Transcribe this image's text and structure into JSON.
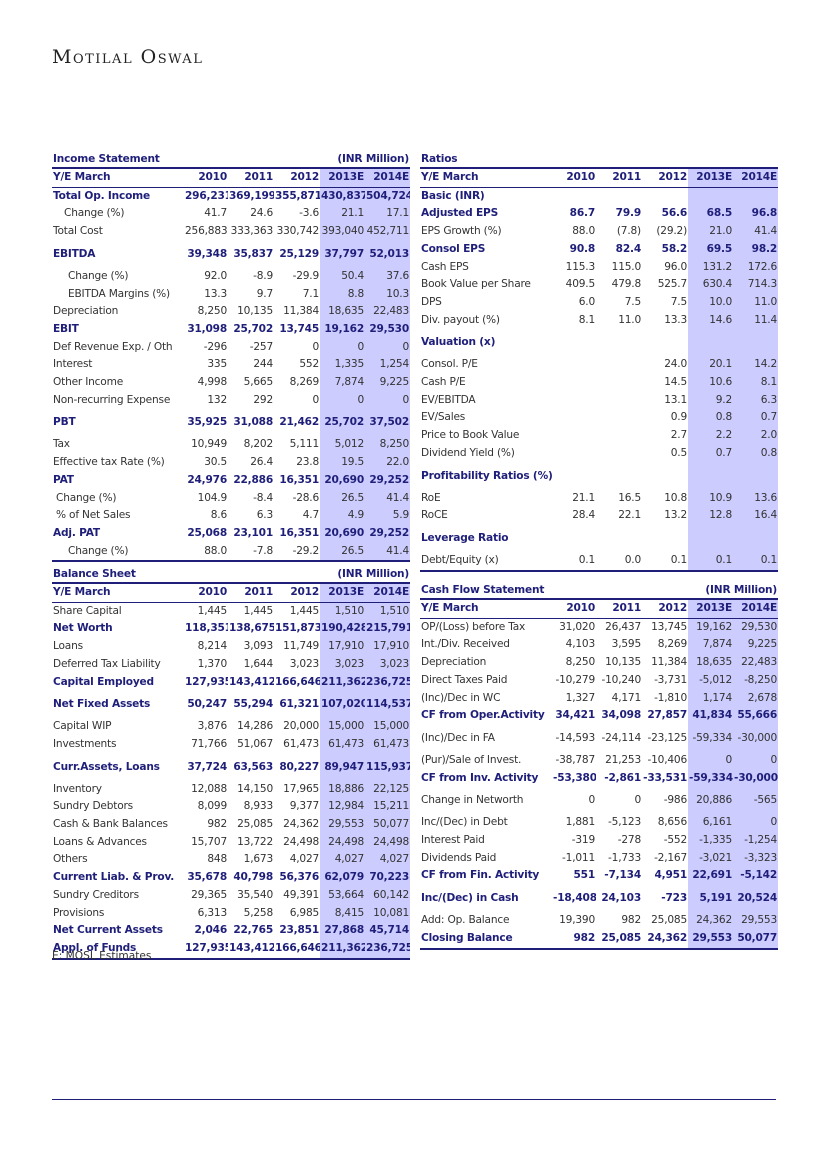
{
  "brand": "Motilal Oswal",
  "note": "E: MOSL Estimates",
  "tables": {
    "income": {
      "title": "Income Statement",
      "unit": "(INR Million)",
      "header": [
        "Y/E March",
        "2010",
        "2011",
        "2012",
        "2013E",
        "2014E"
      ],
      "rows": [
        {
          "label": "Total Op. Income",
          "values": [
            "296,231",
            "369,199",
            "355,871",
            "430,837",
            "504,724"
          ],
          "style": "b"
        },
        {
          "label": "Change (%)",
          "values": [
            "41.7",
            "24.6",
            "-3.6",
            "21.1",
            "17.1"
          ],
          "indent": 1
        },
        {
          "label": "Total Cost",
          "values": [
            "256,883",
            "333,363",
            "330,742",
            "393,040",
            "452,711"
          ]
        },
        {
          "label": "EBITDA",
          "values": [
            "39,348",
            "35,837",
            "25,129",
            "37,797",
            "52,013"
          ],
          "style": "b",
          "gap": true
        },
        {
          "label": "Change (%)",
          "values": [
            "92.0",
            "-8.9",
            "-29.9",
            "50.4",
            "37.6"
          ],
          "indent": 2
        },
        {
          "label": "EBITDA Margins (%)",
          "values": [
            "13.3",
            "9.7",
            "7.1",
            "8.8",
            "10.3"
          ],
          "indent": 2
        },
        {
          "label": "Depreciation",
          "values": [
            "8,250",
            "10,135",
            "11,384",
            "18,635",
            "22,483"
          ]
        },
        {
          "label": "EBIT",
          "values": [
            "31,098",
            "25,702",
            "13,745",
            "19,162",
            "29,530"
          ],
          "style": "b"
        },
        {
          "label": "Def Revenue Exp. / Oth",
          "values": [
            "-296",
            "-257",
            "0",
            "0",
            "0"
          ]
        },
        {
          "label": "Interest",
          "values": [
            "335",
            "244",
            "552",
            "1,335",
            "1,254"
          ]
        },
        {
          "label": "Other Income",
          "values": [
            "4,998",
            "5,665",
            "8,269",
            "7,874",
            "9,225"
          ]
        },
        {
          "label": "Non-recurring Expense",
          "values": [
            "132",
            "292",
            "0",
            "0",
            "0"
          ]
        },
        {
          "label": "PBT",
          "values": [
            "35,925",
            "31,088",
            "21,462",
            "25,702",
            "37,502"
          ],
          "style": "b",
          "gap": true
        },
        {
          "label": "Tax",
          "values": [
            "10,949",
            "8,202",
            "5,111",
            "5,012",
            "8,250"
          ]
        },
        {
          "label": "Effective tax Rate (%)",
          "values": [
            "30.5",
            "26.4",
            "23.8",
            "19.5",
            "22.0"
          ]
        },
        {
          "label": "PAT",
          "values": [
            "24,976",
            "22,886",
            "16,351",
            "20,690",
            "29,252"
          ],
          "style": "b"
        },
        {
          "label": "Change (%)",
          "values": [
            "104.9",
            "-8.4",
            "-28.6",
            "26.5",
            "41.4"
          ],
          "indent": 3
        },
        {
          "label": "% of Net Sales",
          "values": [
            "8.6",
            "6.3",
            "4.7",
            "4.9",
            "5.9"
          ],
          "indent": 3
        },
        {
          "label": "Adj. PAT",
          "values": [
            "25,068",
            "23,101",
            "16,351",
            "20,690",
            "29,252"
          ],
          "style": "b"
        },
        {
          "label": "Change (%)",
          "values": [
            "88.0",
            "-7.8",
            "-29.2",
            "26.5",
            "41.4"
          ],
          "indent": 2
        }
      ]
    },
    "ratios": {
      "title": "Ratios",
      "unit": "",
      "header": [
        "Y/E March",
        "2010",
        "2011",
        "2012",
        "2013E",
        "2014E"
      ],
      "rows": [
        {
          "label": "Basic (INR)",
          "values": [
            "",
            "",
            "",
            "",
            ""
          ],
          "style": "sec"
        },
        {
          "label": "Adjusted EPS",
          "values": [
            "86.7",
            "79.9",
            "56.6",
            "68.5",
            "96.8"
          ],
          "style": "b"
        },
        {
          "label": "EPS Growth (%)",
          "values": [
            "88.0",
            "(7.8)",
            "(29.2)",
            "21.0",
            "41.4"
          ]
        },
        {
          "label": "Consol EPS",
          "values": [
            "90.8",
            "82.4",
            "58.2",
            "69.5",
            "98.2"
          ],
          "style": "b"
        },
        {
          "label": "Cash EPS",
          "values": [
            "115.3",
            "115.0",
            "96.0",
            "131.2",
            "172.6"
          ]
        },
        {
          "label": "Book Value per Share",
          "values": [
            "409.5",
            "479.8",
            "525.7",
            "630.4",
            "714.3"
          ]
        },
        {
          "label": "DPS",
          "values": [
            "6.0",
            "7.5",
            "7.5",
            "10.0",
            "11.0"
          ]
        },
        {
          "label": "Div. payout (%)",
          "values": [
            "8.1",
            "11.0",
            "13.3",
            "14.6",
            "11.4"
          ]
        },
        {
          "label": "Valuation (x)",
          "values": [
            "",
            "",
            "",
            "",
            ""
          ],
          "style": "sec",
          "gap": true
        },
        {
          "label": "Consol. P/E",
          "values": [
            "",
            "",
            "24.0",
            "20.1",
            "14.2"
          ]
        },
        {
          "label": "Cash P/E",
          "values": [
            "",
            "",
            "14.5",
            "10.6",
            "8.1"
          ]
        },
        {
          "label": "EV/EBITDA",
          "values": [
            "",
            "",
            "13.1",
            "9.2",
            "6.3"
          ]
        },
        {
          "label": "EV/Sales",
          "values": [
            "",
            "",
            "0.9",
            "0.8",
            "0.7"
          ]
        },
        {
          "label": "Price to Book Value",
          "values": [
            "",
            "",
            "2.7",
            "2.2",
            "2.0"
          ]
        },
        {
          "label": "Dividend Yield (%)",
          "values": [
            "",
            "",
            "0.5",
            "0.7",
            "0.8"
          ]
        },
        {
          "label": "Profitability Ratios (%)",
          "values": [
            "",
            "",
            "",
            "",
            ""
          ],
          "style": "sec",
          "gap": true
        },
        {
          "label": "RoE",
          "values": [
            "21.1",
            "16.5",
            "10.8",
            "10.9",
            "13.6"
          ]
        },
        {
          "label": "RoCE",
          "values": [
            "28.4",
            "22.1",
            "13.2",
            "12.8",
            "16.4"
          ]
        },
        {
          "label": "Leverage Ratio",
          "values": [
            "",
            "",
            "",
            "",
            ""
          ],
          "style": "sec",
          "gap": true
        },
        {
          "label": "Debt/Equity (x)",
          "values": [
            "0.1",
            "0.0",
            "0.1",
            "0.1",
            "0.1"
          ]
        }
      ]
    },
    "balance": {
      "title": "Balance Sheet",
      "unit": "(INR Million)",
      "header": [
        "Y/E March",
        "2010",
        "2011",
        "2012",
        "2013E",
        "2014E"
      ],
      "rows": [
        {
          "label": "Share Capital",
          "values": [
            "1,445",
            "1,445",
            "1,445",
            "1,510",
            "1,510"
          ]
        },
        {
          "label": "Net Worth",
          "values": [
            "118,351",
            "138,675",
            "151,873",
            "190,428",
            "215,791"
          ],
          "style": "b"
        },
        {
          "label": "Loans",
          "values": [
            "8,214",
            "3,093",
            "11,749",
            "17,910",
            "17,910"
          ]
        },
        {
          "label": "Deferred Tax Liability",
          "values": [
            "1,370",
            "1,644",
            "3,023",
            "3,023",
            "3,023"
          ]
        },
        {
          "label": "Capital Employed",
          "values": [
            "127,935",
            "143,412",
            "166,646",
            "211,362",
            "236,725"
          ],
          "style": "b"
        },
        {
          "label": "Net Fixed Assets",
          "values": [
            "50,247",
            "55,294",
            "61,321",
            "107,020",
            "114,537"
          ],
          "style": "b",
          "gap": true
        },
        {
          "label": "Capital WIP",
          "values": [
            "3,876",
            "14,286",
            "20,000",
            "15,000",
            "15,000"
          ]
        },
        {
          "label": "Investments",
          "values": [
            "71,766",
            "51,067",
            "61,473",
            "61,473",
            "61,473"
          ]
        },
        {
          "label": "Curr.Assets, Loans",
          "values": [
            "37,724",
            "63,563",
            "80,227",
            "89,947",
            "115,937"
          ],
          "style": "b",
          "gap": true
        },
        {
          "label": "Inventory",
          "values": [
            "12,088",
            "14,150",
            "17,965",
            "18,886",
            "22,125"
          ]
        },
        {
          "label": "Sundry Debtors",
          "values": [
            "8,099",
            "8,933",
            "9,377",
            "12,984",
            "15,211"
          ]
        },
        {
          "label": "Cash & Bank Balances",
          "values": [
            "982",
            "25,085",
            "24,362",
            "29,553",
            "50,077"
          ]
        },
        {
          "label": "Loans & Advances",
          "values": [
            "15,707",
            "13,722",
            "24,498",
            "24,498",
            "24,498"
          ]
        },
        {
          "label": "Others",
          "values": [
            "848",
            "1,673",
            "4,027",
            "4,027",
            "4,027"
          ]
        },
        {
          "label": "Current Liab. & Prov.",
          "values": [
            "35,678",
            "40,798",
            "56,376",
            "62,079",
            "70,223"
          ],
          "style": "b"
        },
        {
          "label": "Sundry Creditors",
          "values": [
            "29,365",
            "35,540",
            "49,391",
            "53,664",
            "60,142"
          ]
        },
        {
          "label": "Provisions",
          "values": [
            "6,313",
            "5,258",
            "6,985",
            "8,415",
            "10,081"
          ]
        },
        {
          "label": "Net Current Assets",
          "values": [
            "2,046",
            "22,765",
            "23,851",
            "27,868",
            "45,714"
          ],
          "style": "b"
        },
        {
          "label": "Appl. of Funds",
          "values": [
            "127,935",
            "143,412",
            "166,646",
            "211,362",
            "236,725"
          ],
          "style": "b"
        }
      ]
    },
    "cashflow": {
      "title": "Cash Flow Statement",
      "unit": "(INR Million)",
      "header": [
        "Y/E March",
        "2010",
        "2011",
        "2012",
        "2013E",
        "2014E"
      ],
      "rows": [
        {
          "label": "OP/(Loss) before Tax",
          "values": [
            "31,020",
            "26,437",
            "13,745",
            "19,162",
            "29,530"
          ]
        },
        {
          "label": "Int./Div. Received",
          "values": [
            "4,103",
            "3,595",
            "8,269",
            "7,874",
            "9,225"
          ]
        },
        {
          "label": "Depreciation",
          "values": [
            "8,250",
            "10,135",
            "11,384",
            "18,635",
            "22,483"
          ]
        },
        {
          "label": "Direct Taxes Paid",
          "values": [
            "-10,279",
            "-10,240",
            "-3,731",
            "-5,012",
            "-8,250"
          ]
        },
        {
          "label": "(Inc)/Dec in WC",
          "values": [
            "1,327",
            "4,171",
            "-1,810",
            "1,174",
            "2,678"
          ]
        },
        {
          "label": "CF from Oper.Activity",
          "values": [
            "34,421",
            "34,098",
            "27,857",
            "41,834",
            "55,666"
          ],
          "style": "b"
        },
        {
          "label": "(Inc)/Dec in FA",
          "values": [
            "-14,593",
            "-24,114",
            "-23,125",
            "-59,334",
            "-30,000"
          ],
          "gap": true
        },
        {
          "label": "(Pur)/Sale of Invest.",
          "values": [
            "-38,787",
            "21,253",
            "-10,406",
            "0",
            "0"
          ]
        },
        {
          "label": "CF from Inv. Activity",
          "values": [
            "-53,380",
            "-2,861",
            "-33,531",
            "-59,334",
            "-30,000"
          ],
          "style": "b"
        },
        {
          "label": "Change in Networth",
          "values": [
            "0",
            "0",
            "-986",
            "20,886",
            "-565"
          ],
          "gap": true
        },
        {
          "label": "Inc/(Dec) in Debt",
          "values": [
            "1,881",
            "-5,123",
            "8,656",
            "6,161",
            "0"
          ]
        },
        {
          "label": "Interest Paid",
          "values": [
            "-319",
            "-278",
            "-552",
            "-1,335",
            "-1,254"
          ]
        },
        {
          "label": "Dividends Paid",
          "values": [
            "-1,011",
            "-1,733",
            "-2,167",
            "-3,021",
            "-3,323"
          ]
        },
        {
          "label": "CF from Fin. Activity",
          "values": [
            "551",
            "-7,134",
            "4,951",
            "22,691",
            "-5,142"
          ],
          "style": "b"
        },
        {
          "label": "Inc/(Dec) in Cash",
          "values": [
            "-18,408",
            "24,103",
            "-723",
            "5,191",
            "20,524"
          ],
          "style": "b",
          "gap": true
        },
        {
          "label": "Add: Op. Balance",
          "values": [
            "19,390",
            "982",
            "25,085",
            "24,362",
            "29,553"
          ]
        },
        {
          "label": "Closing Balance",
          "values": [
            "982",
            "25,085",
            "24,362",
            "29,553",
            "50,077"
          ],
          "style": "b"
        }
      ]
    }
  }
}
